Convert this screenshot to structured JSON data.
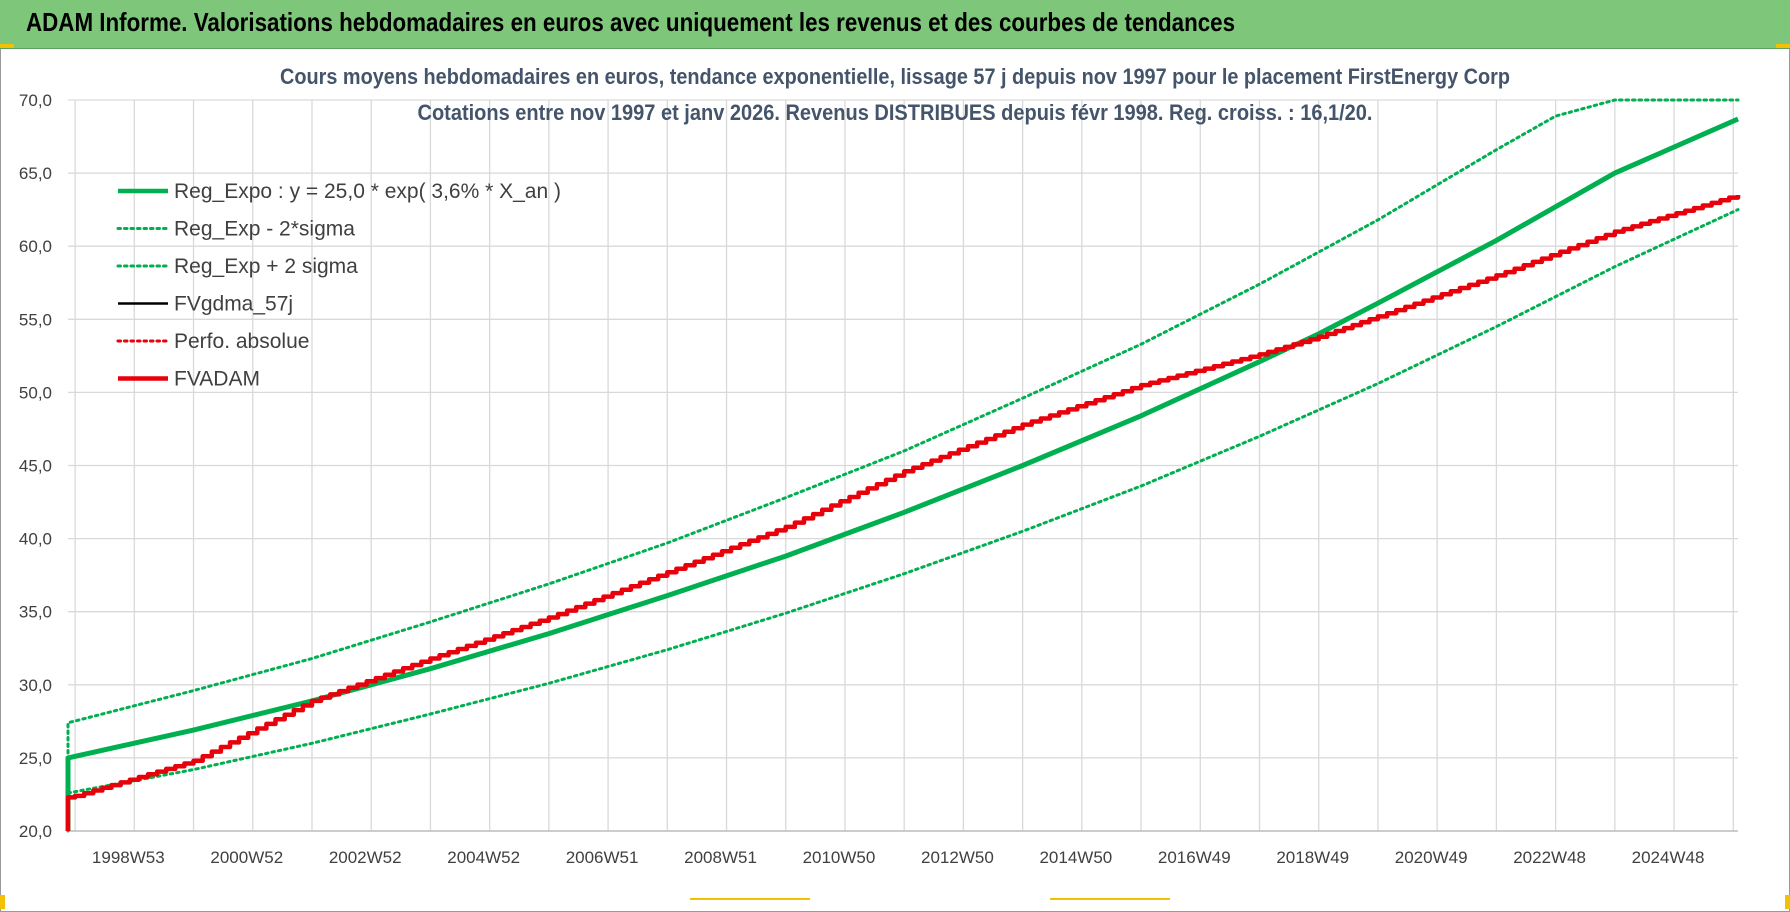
{
  "banner": {
    "title": "ADAM Informe. Valorisations hebdomadaires en euros avec uniquement les revenus et des courbes de tendances"
  },
  "colors": {
    "banner_bg": "#7dc67a",
    "trend_green": "#00b050",
    "fv_red": "#e8000b",
    "grid": "#d9d9d9",
    "title_text": "#44546a",
    "corner_marks": "#f2c200"
  },
  "chart_data": {
    "type": "line",
    "title_line1": "Cours moyens hebdomadaires en euros, tendance exponentielle, lissage 57 j depuis nov 1997  pour le  placement FirstEnergy Corp",
    "title_line2": "Cotations entre nov 1997 et janv 2026. Revenus DISTRIBUES depuis févr 1998. Reg.  croiss. : 16,1/20.",
    "xlabel": "",
    "ylabel": "",
    "ylim": [
      20,
      70
    ],
    "yticks": [
      "20,0",
      "25,0",
      "30,0",
      "35,0",
      "40,0",
      "45,0",
      "50,0",
      "55,0",
      "60,0",
      "65,0",
      "70,0"
    ],
    "x_range_years": [
      1997.88,
      2026.08
    ],
    "xticks": [
      {
        "label": "1998W53",
        "x": 1999.0
      },
      {
        "label": "2000W52",
        "x": 2001.0
      },
      {
        "label": "2002W52",
        "x": 2003.0
      },
      {
        "label": "2004W52",
        "x": 2005.0
      },
      {
        "label": "2006W51",
        "x": 2007.0
      },
      {
        "label": "2008W51",
        "x": 2009.0
      },
      {
        "label": "2010W50",
        "x": 2011.0
      },
      {
        "label": "2012W50",
        "x": 2013.0
      },
      {
        "label": "2014W50",
        "x": 2015.0
      },
      {
        "label": "2016W49",
        "x": 2017.0
      },
      {
        "label": "2018W49",
        "x": 2019.0
      },
      {
        "label": "2020W49",
        "x": 2021.0
      },
      {
        "label": "2022W48",
        "x": 2023.0
      },
      {
        "label": "2024W48",
        "x": 2025.0
      }
    ],
    "grid": true,
    "legend_position": "top-left",
    "series": [
      {
        "name": "Reg_Expo : y = 25,0 * exp( 3,6% *  X_an )",
        "color": "#00b050",
        "style": "solid-thick",
        "x": [
          1997.88,
          1997.88,
          2000,
          2002,
          2004,
          2006,
          2008,
          2010,
          2012,
          2014,
          2016,
          2018,
          2019,
          2020,
          2022,
          2024,
          2026.08
        ],
        "y": [
          20.0,
          25.0,
          26.9,
          28.9,
          31.1,
          33.5,
          36.1,
          38.8,
          41.8,
          45.0,
          48.4,
          52.1,
          54.0,
          56.1,
          60.4,
          65.0,
          68.7
        ]
      },
      {
        "name": "Reg_Exp - 2*sigma",
        "color": "#00b050",
        "style": "dotted",
        "x": [
          1997.88,
          2000,
          2002,
          2004,
          2006,
          2008,
          2010,
          2012,
          2014,
          2016,
          2018,
          2020,
          2022,
          2024,
          2026.08
        ],
        "y": [
          22.6,
          24.2,
          26.0,
          28.0,
          30.1,
          32.4,
          34.9,
          37.6,
          40.5,
          43.6,
          47.0,
          50.6,
          54.5,
          58.6,
          62.5
        ]
      },
      {
        "name": "Reg_Exp + 2 sigma",
        "color": "#00b050",
        "style": "dotted",
        "x": [
          1997.88,
          1997.88,
          2000,
          2002,
          2004,
          2006,
          2008,
          2010,
          2012,
          2014,
          2016,
          2018,
          2020,
          2022,
          2023.0,
          2024.0,
          2026.08
        ],
        "y": [
          20.0,
          27.4,
          29.6,
          31.8,
          34.3,
          36.9,
          39.7,
          42.8,
          46.0,
          49.6,
          53.3,
          57.4,
          61.8,
          66.6,
          68.9,
          70.0,
          70.0
        ]
      },
      {
        "name": "FVgdma_57j",
        "color": "#000000",
        "style": "solid",
        "x": [],
        "y": []
      },
      {
        "name": "Perfo. absolue",
        "color": "#e8000b",
        "style": "dotted",
        "x": [],
        "y": []
      },
      {
        "name": "FVADAM",
        "color": "#e8000b",
        "style": "solid-thick-stepped",
        "x": [
          1997.88,
          1997.88,
          1998.0,
          2000,
          2002,
          2004,
          2006,
          2008,
          2010,
          2012,
          2014,
          2016,
          2018,
          2019,
          2020,
          2022,
          2024,
          2026.08
        ],
        "y": [
          20.0,
          22.3,
          22.4,
          24.8,
          28.9,
          31.8,
          34.6,
          37.7,
          40.8,
          44.6,
          47.8,
          50.5,
          52.6,
          53.8,
          55.2,
          58.0,
          61.0,
          63.5
        ]
      }
    ]
  }
}
